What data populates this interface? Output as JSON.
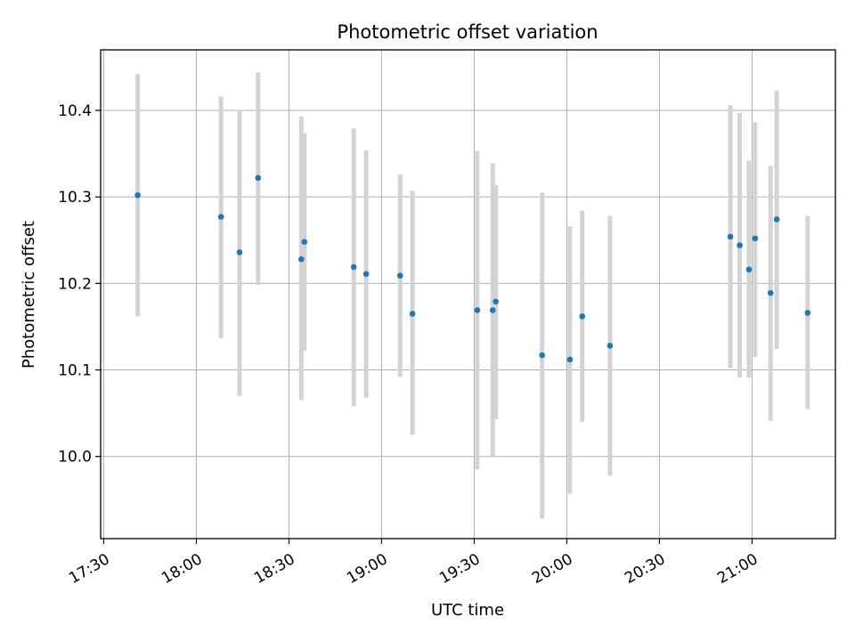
{
  "chart_data": {
    "type": "scatter",
    "title": "Photometric offset variation",
    "xlabel": "UTC time",
    "ylabel": "Photometric offset",
    "x_ticks": [
      "17:30",
      "18:00",
      "18:30",
      "19:00",
      "19:30",
      "20:00",
      "20:30",
      "21:00"
    ],
    "y_ticks": [
      "10.0",
      "10.1",
      "10.2",
      "10.3",
      "10.4"
    ],
    "xlim": [
      "17:29",
      "21:27"
    ],
    "ylim": [
      9.905,
      10.47
    ],
    "grid": true,
    "colors": {
      "point": "#1f77b4",
      "errorbar": "#d3d3d3",
      "grid": "#b0b0b0"
    },
    "points": [
      {
        "t": "17:41",
        "y": 10.302,
        "lo": 10.162,
        "hi": 10.442
      },
      {
        "t": "18:08",
        "y": 10.277,
        "lo": 10.137,
        "hi": 10.416
      },
      {
        "t": "18:14",
        "y": 10.236,
        "lo": 10.07,
        "hi": 10.4
      },
      {
        "t": "18:20",
        "y": 10.322,
        "lo": 10.198,
        "hi": 10.444
      },
      {
        "t": "18:34",
        "y": 10.228,
        "lo": 10.065,
        "hi": 10.393
      },
      {
        "t": "18:35",
        "y": 10.248,
        "lo": 10.122,
        "hi": 10.374
      },
      {
        "t": "18:51",
        "y": 10.219,
        "lo": 10.058,
        "hi": 10.379
      },
      {
        "t": "18:55",
        "y": 10.211,
        "lo": 10.068,
        "hi": 10.354
      },
      {
        "t": "19:06",
        "y": 10.209,
        "lo": 10.092,
        "hi": 10.326
      },
      {
        "t": "19:10",
        "y": 10.165,
        "lo": 10.025,
        "hi": 10.307
      },
      {
        "t": "19:31",
        "y": 10.169,
        "lo": 9.985,
        "hi": 10.353
      },
      {
        "t": "19:36",
        "y": 10.169,
        "lo": 10.0,
        "hi": 10.339
      },
      {
        "t": "19:37",
        "y": 10.179,
        "lo": 10.043,
        "hi": 10.314
      },
      {
        "t": "19:52",
        "y": 10.117,
        "lo": 9.928,
        "hi": 10.305
      },
      {
        "t": "20:01",
        "y": 10.112,
        "lo": 9.957,
        "hi": 10.266
      },
      {
        "t": "20:05",
        "y": 10.162,
        "lo": 10.04,
        "hi": 10.284
      },
      {
        "t": "20:14",
        "y": 10.128,
        "lo": 9.978,
        "hi": 10.278
      },
      {
        "t": "20:53",
        "y": 10.254,
        "lo": 10.102,
        "hi": 10.406
      },
      {
        "t": "20:56",
        "y": 10.244,
        "lo": 10.091,
        "hi": 10.397
      },
      {
        "t": "20:59",
        "y": 10.216,
        "lo": 10.091,
        "hi": 10.342
      },
      {
        "t": "21:01",
        "y": 10.252,
        "lo": 10.115,
        "hi": 10.386
      },
      {
        "t": "21:06",
        "y": 10.189,
        "lo": 10.041,
        "hi": 10.336
      },
      {
        "t": "21:08",
        "y": 10.274,
        "lo": 10.124,
        "hi": 10.423
      },
      {
        "t": "21:18",
        "y": 10.166,
        "lo": 10.055,
        "hi": 10.278
      }
    ]
  }
}
